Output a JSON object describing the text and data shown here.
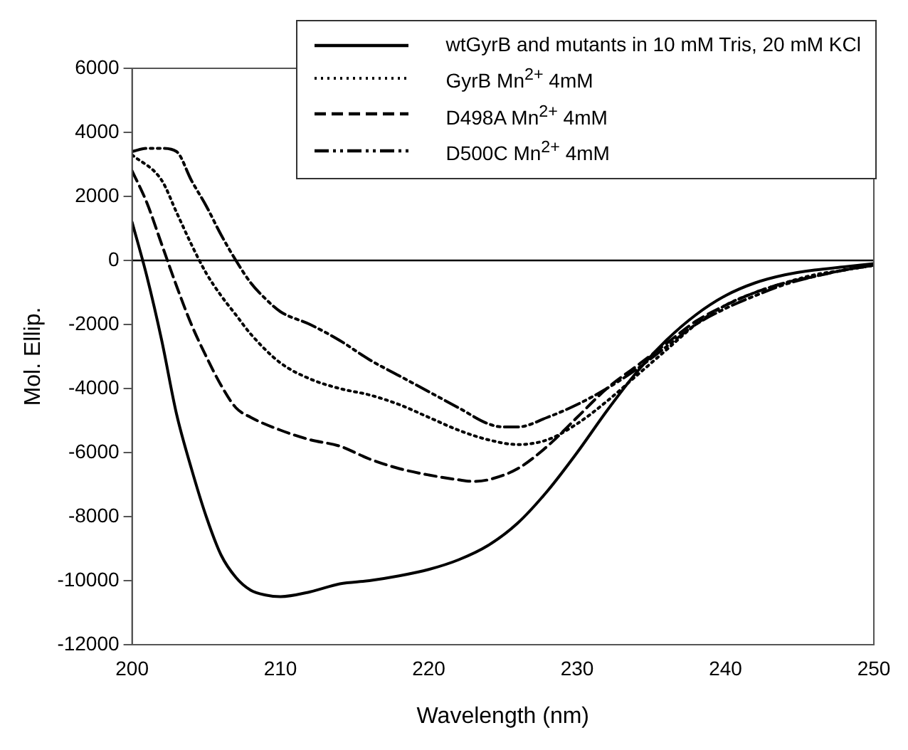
{
  "chart_data": {
    "type": "line",
    "xlabel": "Wavelength (nm)",
    "ylabel": "Mol. Ellip.",
    "xlim": [
      200,
      250
    ],
    "xticks": [
      200,
      210,
      220,
      230,
      240,
      250
    ],
    "ylim": [
      -12000,
      6000
    ],
    "yticks": [
      -12000,
      -10000,
      -8000,
      -6000,
      -4000,
      -2000,
      0,
      2000,
      4000,
      6000
    ],
    "grid": false,
    "legend": "top right",
    "marker": "none",
    "ref_lines": [
      {
        "axis": "y",
        "value": 0,
        "color": "#000000"
      }
    ],
    "series": [
      {
        "name": "wtGyrB and mutants in 10 mM Tris, 20 mM KCl",
        "color": "#000000",
        "line_style": "solid",
        "x": [
          200,
          201,
          202,
          203,
          204,
          205,
          206,
          207,
          208,
          209,
          210,
          212,
          214,
          216,
          218,
          220,
          222,
          224,
          226,
          228,
          230,
          232,
          234,
          236,
          238,
          240,
          242,
          244,
          246,
          248,
          250
        ],
        "values": [
          1200,
          -500,
          -2500,
          -4800,
          -6500,
          -8000,
          -9200,
          -9900,
          -10300,
          -10450,
          -10500,
          -10350,
          -10100,
          -10000,
          -9850,
          -9650,
          -9350,
          -8900,
          -8200,
          -7200,
          -6000,
          -4700,
          -3500,
          -2500,
          -1700,
          -1100,
          -700,
          -450,
          -300,
          -200,
          -100
        ]
      },
      {
        "name": "GyrB Mn$^{2+}$ 4mM",
        "color": "#000000",
        "line_style": "dotted",
        "x": [
          200,
          202,
          203,
          204,
          205,
          206,
          207,
          208,
          210,
          212,
          214,
          216,
          218,
          220,
          222,
          224,
          226,
          228,
          230,
          232,
          234,
          236,
          238,
          240,
          242,
          244,
          246,
          248,
          250
        ],
        "values": [
          3300,
          2500,
          1500,
          500,
          -400,
          -1100,
          -1700,
          -2300,
          -3200,
          -3700,
          -4000,
          -4200,
          -4500,
          -4900,
          -5300,
          -5600,
          -5750,
          -5600,
          -5100,
          -4400,
          -3600,
          -2800,
          -2000,
          -1400,
          -1000,
          -700,
          -450,
          -300,
          -150
        ]
      },
      {
        "name": "D498A Mn$^{2+}$ 4mM",
        "color": "#000000",
        "line_style": "dashed",
        "x": [
          200,
          201,
          202,
          203,
          204,
          205,
          206,
          207,
          208,
          210,
          212,
          214,
          216,
          218,
          220,
          222,
          223,
          224,
          226,
          228,
          230,
          232,
          234,
          236,
          238,
          240,
          242,
          244,
          246,
          248,
          250
        ],
        "values": [
          2800,
          1800,
          500,
          -800,
          -2000,
          -3000,
          -3900,
          -4600,
          -4900,
          -5300,
          -5600,
          -5800,
          -6200,
          -6500,
          -6700,
          -6850,
          -6900,
          -6850,
          -6500,
          -5800,
          -4900,
          -4000,
          -3300,
          -2600,
          -1900,
          -1400,
          -1000,
          -700,
          -500,
          -300,
          -150
        ]
      },
      {
        "name": "D500C Mn$^{2+}$ 4mM",
        "color": "#000000",
        "line_style": "dashdot",
        "x": [
          200,
          201,
          202,
          203,
          204,
          205,
          206,
          207,
          208,
          209,
          210,
          212,
          214,
          216,
          218,
          220,
          222,
          224,
          225,
          226,
          228,
          230,
          232,
          234,
          236,
          238,
          240,
          242,
          244,
          246,
          248,
          250
        ],
        "values": [
          3400,
          3500,
          3500,
          3400,
          2500,
          1700,
          800,
          0,
          -700,
          -1200,
          -1600,
          -2000,
          -2500,
          -3100,
          -3600,
          -4100,
          -4600,
          -5100,
          -5200,
          -5200,
          -4900,
          -4500,
          -4000,
          -3400,
          -2700,
          -2000,
          -1500,
          -1100,
          -750,
          -500,
          -300,
          -150
        ]
      }
    ]
  }
}
